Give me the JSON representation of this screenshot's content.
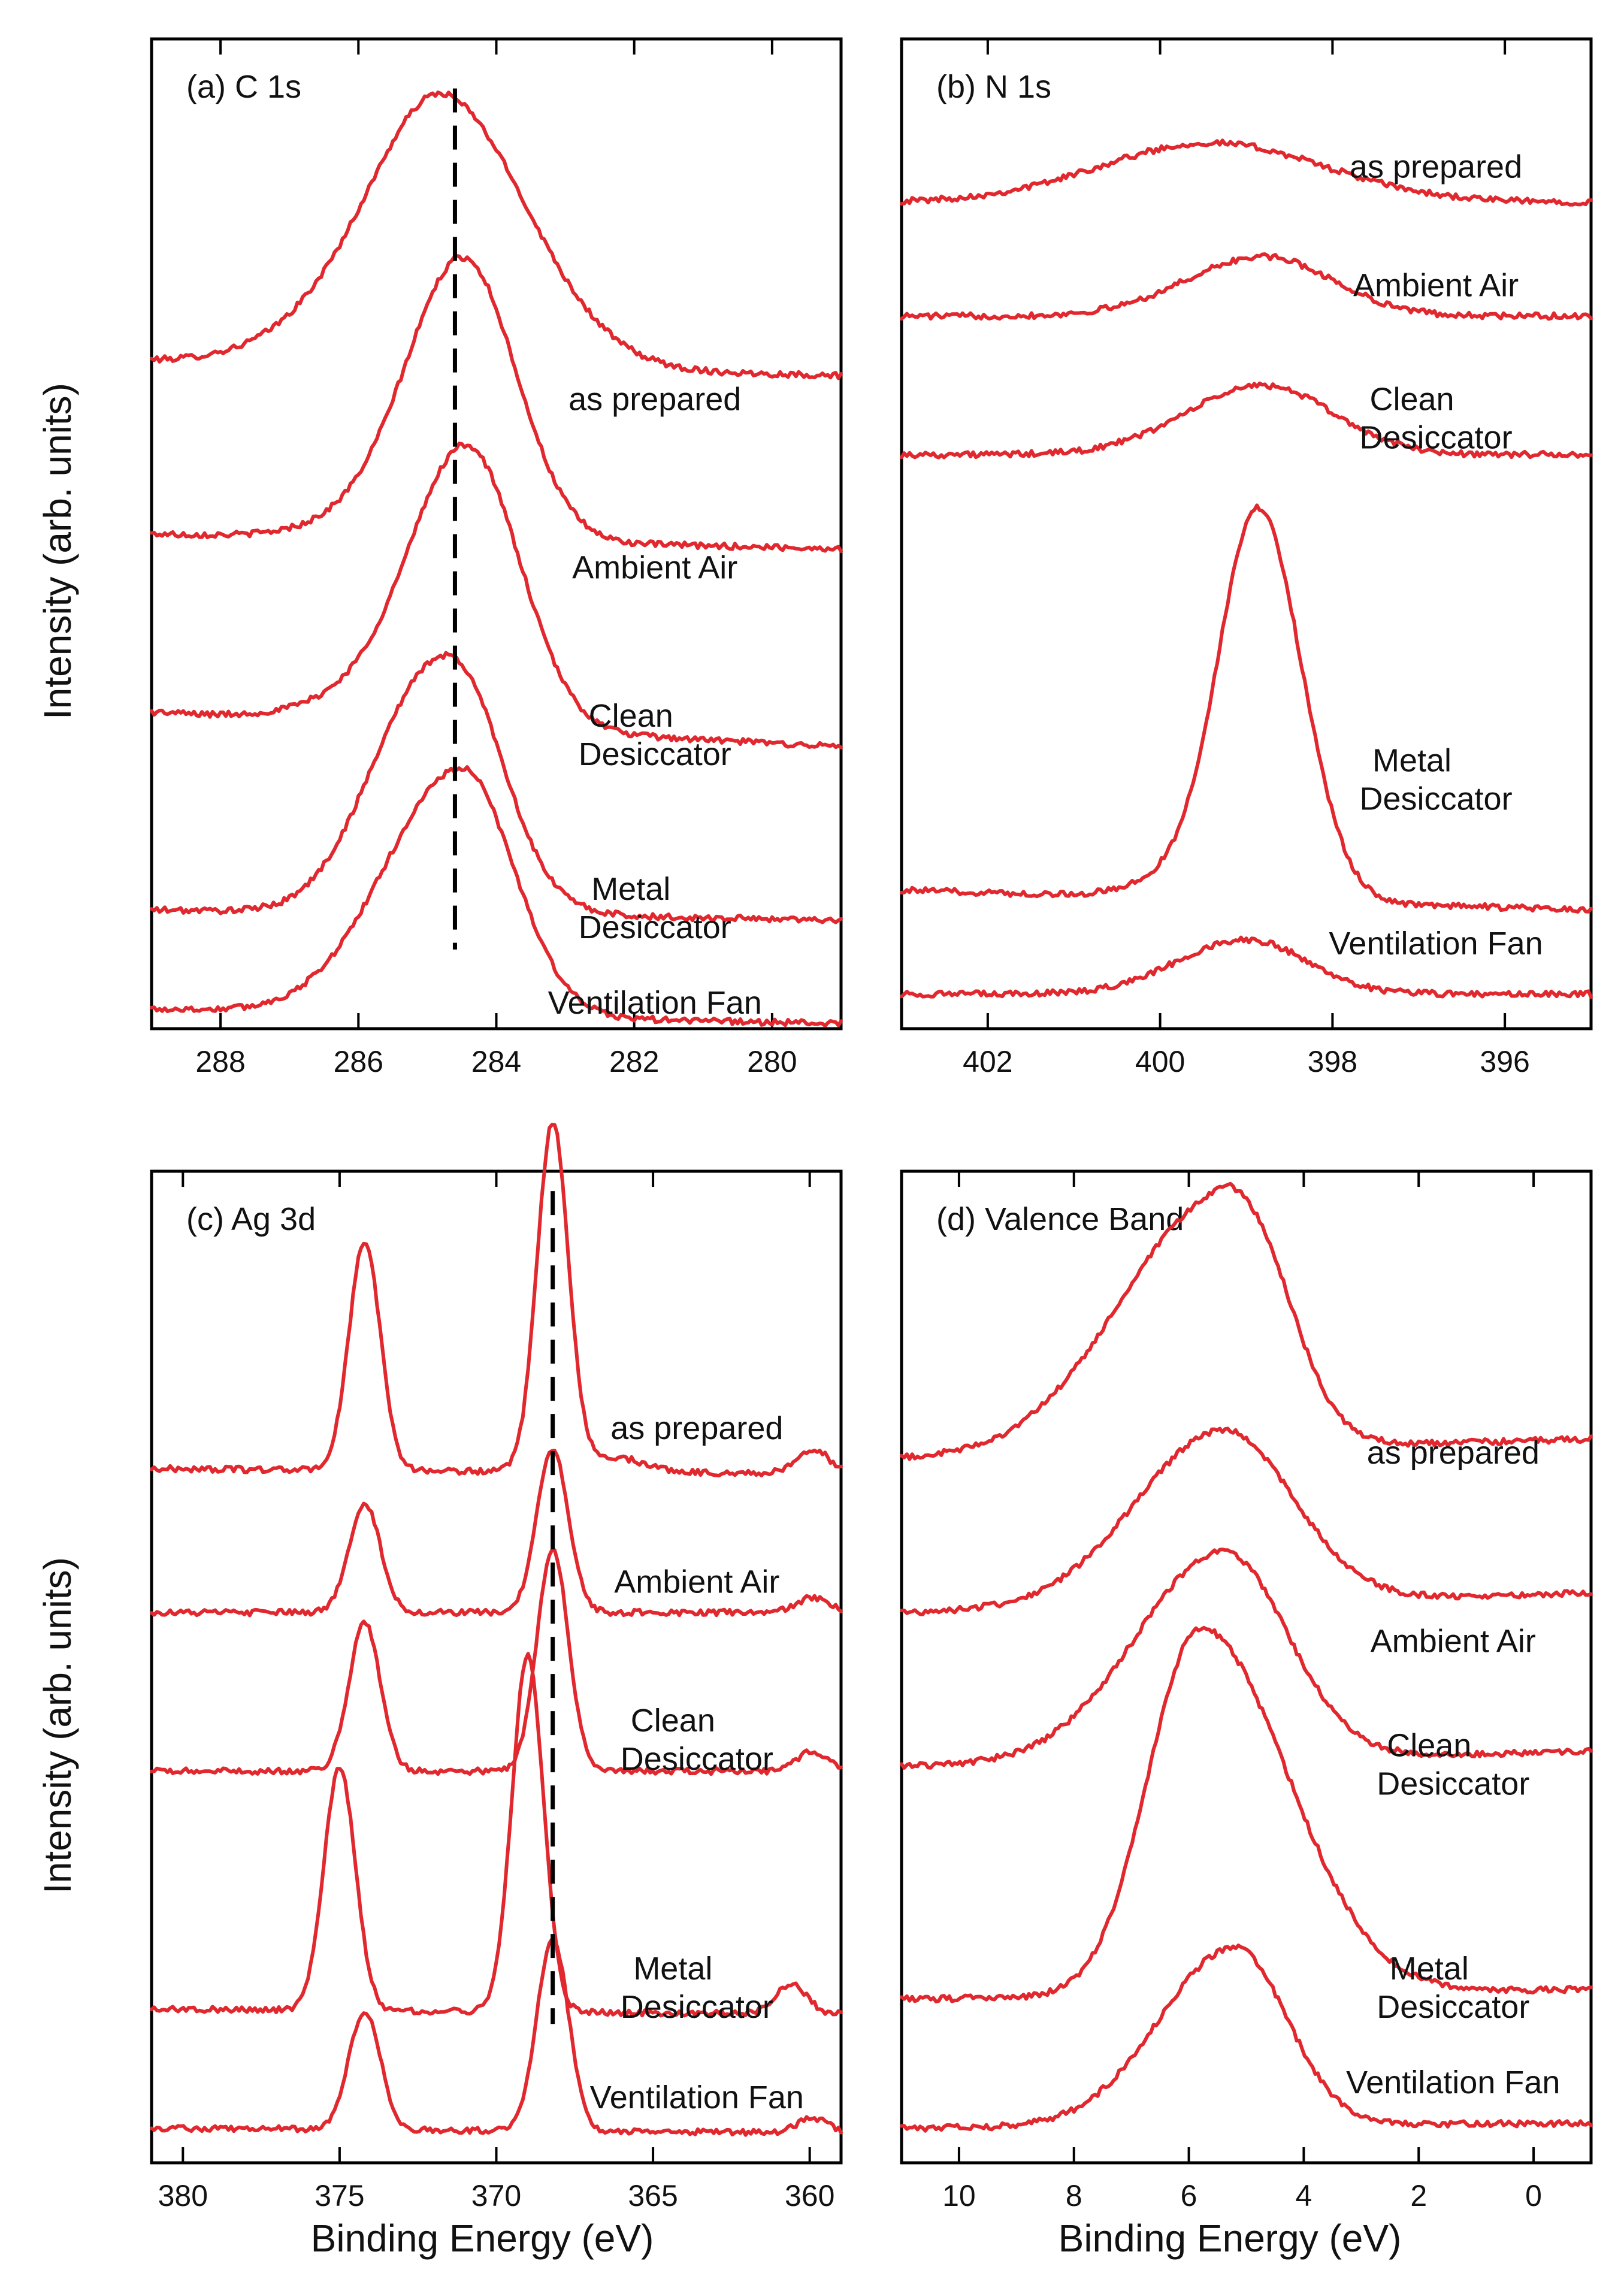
{
  "figure": {
    "y_axis_label": "Intensity (arb. units)",
    "x_axis_label": "Binding Energy (eV)",
    "trace_color": "#e0282e"
  },
  "chart_data": [
    {
      "id": "a",
      "type": "line",
      "title": "(a) C 1s",
      "xlabel": "",
      "ylabel": "Intensity (arb. units)",
      "xlim": [
        289,
        279
      ],
      "x_reversed": true,
      "ylim": [
        0,
        10
      ],
      "ticks": [
        288,
        286,
        284,
        282,
        280
      ],
      "reference_line_x": 284.6,
      "reference_line_y": [
        0.8,
        9.5
      ],
      "series": [
        {
          "name": "as prepared",
          "label_lines": [
            "as prepared"
          ],
          "label_x": 281.7,
          "label_y": 6.25,
          "baseline": 6.6,
          "tail_low": 0.15,
          "tail_high": 0.0,
          "peaks": [
            [
              284.7,
              2.5,
              1.0,
              1.2
            ],
            [
              286.0,
              0.5,
              1.1,
              1.1
            ]
          ]
        },
        {
          "name": "Ambient Air",
          "label_lines": [
            "Ambient Air"
          ],
          "label_x": 281.7,
          "label_y": 4.55,
          "baseline": 4.85,
          "tail_low": 0.15,
          "tail_high": 0.0,
          "peaks": [
            [
              284.45,
              2.75,
              0.8,
              0.75
            ],
            [
              285.6,
              0.25,
              0.9,
              0.9
            ]
          ]
        },
        {
          "name": "Clean Desiccator",
          "label_lines": [
            "Clean",
            "Desiccator"
          ],
          "label_x": 281.7,
          "label_y": 3.05,
          "baseline": 2.85,
          "tail_low": 0.35,
          "tail_high": 0.0,
          "peaks": [
            [
              284.4,
              2.75,
              0.8,
              0.75
            ],
            [
              285.7,
              0.3,
              0.9,
              0.9
            ]
          ]
        },
        {
          "name": "Metal Desiccator",
          "label_lines": [
            "Metal",
            "Desiccator"
          ],
          "label_x": 281.7,
          "label_y": 1.3,
          "baseline": 1.1,
          "tail_low": 0.1,
          "tail_high": 0.0,
          "peaks": [
            [
              285.0,
              2.3,
              0.85,
              0.9
            ],
            [
              284.3,
              0.6,
              0.5,
              0.5
            ]
          ]
        },
        {
          "name": "Ventilation Fan",
          "label_lines": [
            "Ventilation Fan"
          ],
          "label_x": 281.7,
          "label_y": 0.15,
          "baseline": 0.05,
          "tail_low": 0.15,
          "tail_high": 0.0,
          "peaks": [
            [
              284.5,
              2.5,
              1.1,
              0.75
            ]
          ]
        }
      ]
    },
    {
      "id": "b",
      "type": "line",
      "title": "(b) N 1s",
      "xlabel": "",
      "ylabel": "",
      "xlim": [
        403,
        395
      ],
      "x_reversed": true,
      "ylim": [
        0,
        10
      ],
      "ticks": [
        402,
        400,
        398,
        396
      ],
      "series": [
        {
          "name": "as prepared",
          "label_lines": [
            "as prepared"
          ],
          "label_x": 396.8,
          "label_y": 8.6,
          "baseline": 8.35,
          "tail_low": 0.0,
          "tail_high": 0.0,
          "peaks": [
            [
              399.4,
              0.6,
              1.3,
              1.3
            ]
          ]
        },
        {
          "name": "Ambient Air",
          "label_lines": [
            "Ambient Air"
          ],
          "label_x": 396.8,
          "label_y": 7.4,
          "baseline": 7.2,
          "tail_low": 0.0,
          "tail_high": 0.0,
          "peaks": [
            [
              398.8,
              0.6,
              0.9,
              0.8
            ]
          ]
        },
        {
          "name": "Clean Desiccator",
          "label_lines": [
            "Clean",
            "Desiccator"
          ],
          "label_x": 396.8,
          "label_y": 6.25,
          "baseline": 5.8,
          "tail_low": 0.0,
          "tail_high": 0.0,
          "peaks": [
            [
              398.8,
              0.7,
              0.9,
              0.8
            ]
          ]
        },
        {
          "name": "Metal Desiccator",
          "label_lines": [
            "Metal",
            "Desiccator"
          ],
          "label_x": 396.8,
          "label_y": 2.6,
          "baseline": 1.2,
          "tail_low": 0.2,
          "tail_high": 0.0,
          "peaks": [
            [
              398.85,
              3.8,
              0.45,
              0.5
            ],
            [
              399.5,
              0.3,
              0.6,
              0.6
            ]
          ]
        },
        {
          "name": "Ventilation Fan",
          "label_lines": [
            "Ventilation Fan"
          ],
          "label_x": 396.8,
          "label_y": 0.75,
          "baseline": 0.35,
          "tail_low": 0.0,
          "tail_high": 0.0,
          "peaks": [
            [
              399.0,
              0.55,
              0.8,
              0.7
            ]
          ]
        }
      ]
    },
    {
      "id": "c",
      "type": "line",
      "title": "(c) Ag 3d",
      "xlabel": "Binding Energy (eV)",
      "ylabel": "Intensity (arb. units)",
      "xlim": [
        381,
        359
      ],
      "x_reversed": true,
      "ylim": [
        0,
        10
      ],
      "ticks": [
        380,
        375,
        370,
        365,
        360
      ],
      "reference_line_x": 368.2,
      "reference_line_y": [
        1.4,
        9.8
      ],
      "series": [
        {
          "name": "as prepared",
          "label_lines": [
            "as prepared"
          ],
          "label_x": 363.6,
          "label_y": 7.3,
          "baseline": 6.95,
          "tail_low": 0.05,
          "tail_high": 0.0,
          "peaks": [
            [
              374.2,
              2.3,
              0.5,
              0.5
            ],
            [
              368.2,
              3.5,
              0.5,
              0.5
            ],
            [
              366.3,
              0.15,
              1.0,
              1.0
            ],
            [
              359.9,
              0.25,
              0.5,
              0.5
            ]
          ]
        },
        {
          "name": "Ambient Air",
          "label_lines": [
            "Ambient Air"
          ],
          "label_x": 363.6,
          "label_y": 5.75,
          "baseline": 5.55,
          "tail_low": 0.0,
          "tail_high": 0.0,
          "peaks": [
            [
              374.2,
              1.1,
              0.5,
              0.5
            ],
            [
              368.2,
              1.65,
              0.5,
              0.5
            ],
            [
              359.9,
              0.15,
              0.5,
              0.5
            ]
          ]
        },
        {
          "name": "Clean Desiccator",
          "label_lines": [
            "Clean",
            "Desiccator"
          ],
          "label_x": 363.6,
          "label_y": 4.35,
          "baseline": 3.95,
          "tail_low": 0.0,
          "tail_high": 0.0,
          "peaks": [
            [
              374.2,
              1.5,
              0.5,
              0.5
            ],
            [
              368.2,
              2.25,
              0.5,
              0.5
            ],
            [
              359.9,
              0.2,
              0.5,
              0.5
            ]
          ]
        },
        {
          "name": "Metal Desiccator",
          "label_lines": [
            "Metal",
            "Desiccator"
          ],
          "label_x": 363.6,
          "label_y": 1.85,
          "baseline": 1.5,
          "tail_low": 0.05,
          "tail_high": 0.0,
          "peaks": [
            [
              375.0,
              2.45,
              0.5,
              0.5
            ],
            [
              369.0,
              3.6,
              0.5,
              0.5
            ],
            [
              360.6,
              0.3,
              0.5,
              0.5
            ]
          ]
        },
        {
          "name": "Ventilation Fan",
          "label_lines": [
            "Ventilation Fan"
          ],
          "label_x": 363.6,
          "label_y": 0.55,
          "baseline": 0.3,
          "tail_low": 0.05,
          "tail_high": 0.0,
          "peaks": [
            [
              374.2,
              1.2,
              0.5,
              0.5
            ],
            [
              368.2,
              1.95,
              0.5,
              0.5
            ],
            [
              359.9,
              0.15,
              0.5,
              0.5
            ]
          ]
        }
      ]
    },
    {
      "id": "d",
      "type": "line",
      "title": "(d) Valence Band",
      "xlabel": "Binding Energy (eV)",
      "ylabel": "",
      "xlim": [
        11,
        -1
      ],
      "x_reversed": true,
      "ylim": [
        0,
        10
      ],
      "ticks": [
        10,
        8,
        6,
        4,
        2,
        0
      ],
      "series": [
        {
          "name": "as prepared",
          "label_lines": [
            "as prepared"
          ],
          "label_x": 1.4,
          "label_y": 7.05,
          "baseline": 7.1,
          "tail_low": 0.0,
          "tail_high": 0.2,
          "peaks": [
            [
              5.5,
              2.5,
              1.7,
              1.0
            ],
            [
              4.6,
              0.4,
              0.6,
              0.6
            ]
          ]
        },
        {
          "name": "Ambient Air",
          "label_lines": [
            "Ambient Air"
          ],
          "label_x": 1.4,
          "label_y": 5.15,
          "baseline": 5.55,
          "tail_low": 0.0,
          "tail_high": 0.2,
          "peaks": [
            [
              5.4,
              1.75,
              1.5,
              1.2
            ]
          ]
        },
        {
          "name": "Clean Desiccator",
          "label_lines": [
            "Clean",
            "Desiccator"
          ],
          "label_x": 1.4,
          "label_y": 4.1,
          "baseline": 4.0,
          "tail_low": 0.0,
          "tail_high": 0.15,
          "peaks": [
            [
              5.4,
              2.1,
              1.5,
              1.1
            ]
          ]
        },
        {
          "name": "Metal Desiccator",
          "label_lines": [
            "Metal",
            "Desiccator"
          ],
          "label_x": 1.4,
          "label_y": 1.85,
          "baseline": 1.6,
          "tail_low": 0.05,
          "tail_high": 0.15,
          "peaks": [
            [
              5.8,
              3.7,
              0.9,
              1.5
            ]
          ]
        },
        {
          "name": "Ventilation Fan",
          "label_lines": [
            "Ventilation Fan"
          ],
          "label_x": 1.4,
          "label_y": 0.7,
          "baseline": 0.3,
          "tail_low": 0.05,
          "tail_high": 0.1,
          "peaks": [
            [
              5.2,
              1.8,
              1.3,
              0.9
            ]
          ]
        }
      ]
    }
  ]
}
